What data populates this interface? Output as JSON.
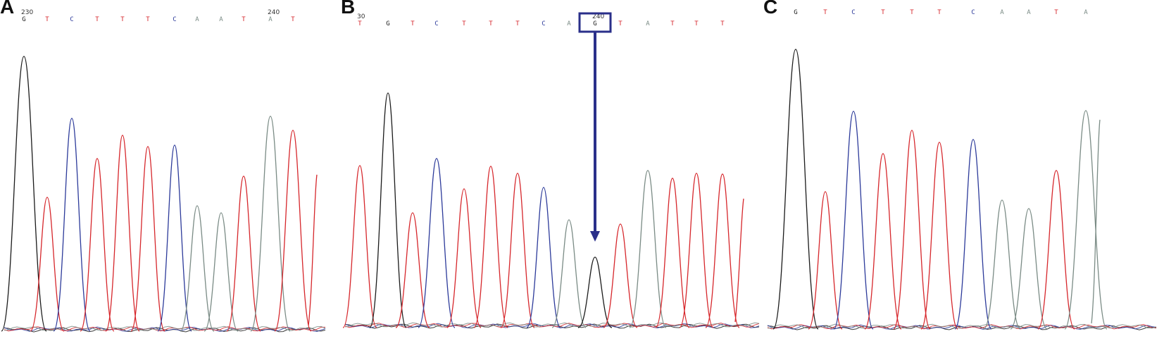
{
  "colors": {
    "G": "#1a1a1a",
    "T": "#d6262b",
    "C": "#2c3a9a",
    "A": "#7a8b85",
    "highlight": "#2a2f8a"
  },
  "panels": [
    {
      "letter": "A",
      "positions": [
        {
          "label": "230",
          "base_index": 0
        },
        {
          "label": "240",
          "base_index": 10
        }
      ],
      "sequence": [
        "G",
        "T",
        "C",
        "T",
        "T",
        "T",
        "C",
        "A",
        "A",
        "T",
        "A",
        "T"
      ]
    },
    {
      "letter": "B",
      "positions": [
        {
          "label": "30",
          "base_index": 0
        },
        {
          "label": "240",
          "base_index": 9
        }
      ],
      "sequence": [
        "T",
        "G",
        "T",
        "C",
        "T",
        "T",
        "T",
        "C",
        "A",
        "G",
        "T",
        "A",
        "T",
        "T",
        "T"
      ],
      "highlight_index": 9
    },
    {
      "letter": "C",
      "positions": [],
      "sequence": [
        "G",
        "T",
        "C",
        "T",
        "T",
        "T",
        "C",
        "A",
        "A",
        "T",
        "A"
      ]
    }
  ]
}
